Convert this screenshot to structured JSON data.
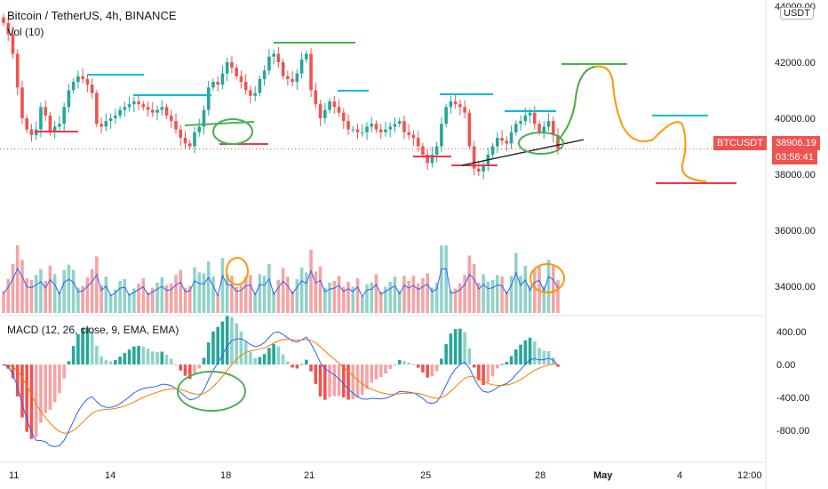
{
  "header": {
    "symbol": "Bitcoin / TetherUS, 4h, BINANCE",
    "vol_label": "Vol (10)",
    "macd_label": "MACD (12, 26, close, 9, EMA, EMA)",
    "currency": "USDT"
  },
  "price_badge": {
    "ticker": "BTCUSDT",
    "price": "38906.19",
    "countdown": "03:56:41"
  },
  "colors": {
    "up": "#26a69a",
    "down": "#ef5350",
    "vol_up": "#8fd3c8",
    "vol_down": "#f6a3a3",
    "ma_line": "#2962ff",
    "signal_line": "#f57c00",
    "drawing_green": "#4caf50",
    "drawing_cyan": "#00bcd4",
    "drawing_red": "#f23645",
    "drawing_orange": "#ff9800"
  },
  "chart_data": [
    {
      "type": "candlestick",
      "title": "Bitcoin / TetherUS, 4h, BINANCE",
      "yticks": [
        "44000.00",
        "42000.00",
        "40000.00",
        "38000.00",
        "36000.00",
        "34000.00"
      ],
      "ylim": [
        33500,
        44300
      ],
      "xticks": [
        "11",
        "14",
        "18",
        "21",
        "25",
        "28",
        "May",
        "4",
        "12:00"
      ],
      "last_price": 38906.19,
      "closes": [
        43400,
        43000,
        42300,
        41100,
        40000,
        39600,
        39400,
        39600,
        40400,
        40100,
        39500,
        39700,
        39800,
        40400,
        41000,
        41300,
        41500,
        41400,
        41200,
        40900,
        39800,
        39700,
        39900,
        40000,
        40100,
        40300,
        40400,
        40500,
        40600,
        40500,
        40400,
        40300,
        40200,
        40300,
        40400,
        40100,
        39900,
        39600,
        39300,
        39100,
        39000,
        39500,
        39700,
        40300,
        41100,
        41300,
        41200,
        41600,
        42000,
        41800,
        41500,
        41300,
        41000,
        40800,
        40900,
        41400,
        41700,
        42200,
        42300,
        42000,
        41500,
        41400,
        41300,
        41600,
        42100,
        42300,
        41000,
        40500,
        40000,
        40300,
        40600,
        40400,
        40200,
        39900,
        39600,
        39600,
        39500,
        39500,
        39700,
        39800,
        39600,
        39500,
        39600,
        39700,
        39800,
        39900,
        39500,
        39400,
        39300,
        39000,
        38700,
        38400,
        38700,
        39000,
        39800,
        40400,
        40600,
        40500,
        40400,
        40200,
        39000,
        38200,
        38100,
        38300,
        38700,
        39000,
        39300,
        39200,
        39100,
        39500,
        39800,
        39900,
        40100,
        40200,
        39800,
        39500,
        39700,
        39900,
        39400,
        38906.19
      ]
    },
    {
      "type": "bar",
      "title": "Vol (10)",
      "ylim": [
        0,
        100
      ]
    },
    {
      "type": "line",
      "title": "MACD (12, 26, close, 9, EMA, EMA)",
      "yticks": [
        "400.00",
        "0.00",
        "-400.00",
        "-800.00"
      ],
      "ylim": [
        -1100,
        420
      ]
    }
  ]
}
